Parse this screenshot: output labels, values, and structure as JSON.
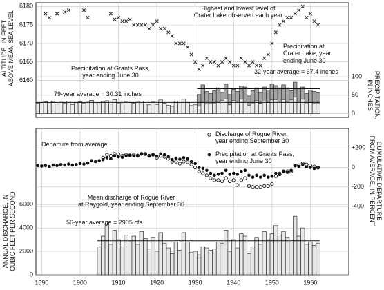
{
  "chart_data": [
    {
      "type": "combo",
      "xlim": [
        1888.5,
        1970
      ],
      "xticks": [
        1890,
        1900,
        1910,
        1920,
        1930,
        1940,
        1950,
        1960
      ],
      "ylim": [
        6150,
        6181
      ],
      "yticks": [
        6160,
        6165,
        6170,
        6175,
        6180
      ],
      "y_label": "ALTITUDE, IN FEET\nABOVE MEAN SEA LEVEL",
      "y2lim": [
        -10,
        300
      ],
      "y2ticks": [
        0,
        50,
        100
      ],
      "y2_label": "PRECIPITATION,\nIN INCHES",
      "grid": true,
      "series": [
        {
          "name": "Highest and lowest level of\nCrater Lake observed each year",
          "type": "scatter",
          "marker": "x",
          "color": "#222222",
          "x": [
            1891,
            1892,
            1894,
            1896,
            1897,
            1901,
            1902,
            1908,
            1909,
            1910,
            1911,
            1912,
            1913,
            1914,
            1915,
            1916,
            1917,
            1918,
            1919,
            1920,
            1921,
            1922,
            1923,
            1924,
            1925,
            1926,
            1927,
            1928,
            1929,
            1930,
            1931,
            1932,
            1933,
            1934,
            1935,
            1936,
            1937,
            1938,
            1939,
            1940,
            1941,
            1942,
            1943,
            1944,
            1945,
            1946,
            1947,
            1948,
            1949,
            1950,
            1951,
            1952,
            1953,
            1954,
            1955,
            1956,
            1957,
            1958,
            1959,
            1960,
            1961,
            1962
          ],
          "values": [
            6178,
            6177,
            6178,
            6178.5,
            6179,
            6179,
            6177,
            6178,
            6176.5,
            6177,
            6176,
            6176,
            6176.5,
            6175,
            6175,
            6175,
            6175,
            6174,
            6175,
            6176,
            6174,
            6174,
            6173,
            6172,
            6170,
            6170,
            6170,
            6169,
            6167,
            6165,
            6163,
            6164,
            6166,
            6165,
            6165,
            6164,
            6165,
            6166,
            6165,
            6164,
            6164,
            6166,
            6165,
            6164,
            6165,
            6164,
            6164,
            6166,
            6167,
            6170,
            6173,
            6175,
            6176,
            6177,
            6177,
            6178,
            6179,
            6180,
            6177,
            6178,
            6176,
            6175
          ]
        },
        {
          "name": "Precipitation at\nCrater Lake, year\nending June 30",
          "type": "step",
          "axis": "y2",
          "color": "#a4a4a4",
          "x": [
            1931,
            1932,
            1933,
            1934,
            1935,
            1936,
            1937,
            1938,
            1939,
            1940,
            1941,
            1942,
            1943,
            1944,
            1945,
            1946,
            1947,
            1948,
            1949,
            1950,
            1951,
            1952,
            1953,
            1954,
            1955,
            1956,
            1957,
            1958,
            1959,
            1960,
            1961,
            1962
          ],
          "values": [
            52,
            78,
            60,
            55,
            62,
            70,
            58,
            80,
            52,
            66,
            60,
            75,
            72,
            48,
            62,
            70,
            58,
            72,
            64,
            80,
            76,
            70,
            78,
            70,
            62,
            85,
            68,
            72,
            55,
            64,
            60,
            58
          ],
          "average": {
            "label": "32-year average = 67.4 inches",
            "value": 67.4
          }
        },
        {
          "name": "Precipitation at Grants Pass,\nyear ending June 30",
          "type": "step",
          "axis": "y2",
          "color": "#ececec",
          "x": [
            1889,
            1890,
            1891,
            1892,
            1893,
            1894,
            1895,
            1896,
            1897,
            1898,
            1899,
            1900,
            1901,
            1902,
            1903,
            1904,
            1905,
            1906,
            1907,
            1908,
            1909,
            1910,
            1911,
            1912,
            1913,
            1914,
            1915,
            1916,
            1917,
            1918,
            1919,
            1920,
            1921,
            1922,
            1923,
            1924,
            1925,
            1926,
            1927,
            1928,
            1929,
            1930,
            1931,
            1932,
            1933,
            1934,
            1935,
            1936,
            1937,
            1938,
            1939,
            1940,
            1941,
            1942,
            1943,
            1944,
            1945,
            1946,
            1947,
            1948,
            1949,
            1950,
            1951,
            1952,
            1953,
            1954,
            1955,
            1956,
            1957,
            1958,
            1959,
            1960,
            1961,
            1962
          ],
          "values": [
            28,
            30,
            32,
            27,
            33,
            26,
            31,
            29,
            34,
            25,
            30,
            32,
            28,
            31,
            36,
            27,
            30,
            33,
            35,
            26,
            38,
            29,
            27,
            33,
            30,
            28,
            31,
            34,
            26,
            24,
            33,
            25,
            37,
            28,
            23,
            20,
            34,
            27,
            39,
            30,
            22,
            24,
            21,
            30,
            26,
            27,
            29,
            33,
            35,
            40,
            24,
            36,
            30,
            39,
            33,
            22,
            29,
            35,
            28,
            34,
            30,
            37,
            38,
            33,
            38,
            31,
            37,
            45,
            33,
            39,
            26,
            30,
            29,
            27
          ],
          "average": {
            "label": "79-year average = 30.31 inches",
            "value": 30.31
          }
        }
      ]
    },
    {
      "type": "combo",
      "xlim": [
        1888.5,
        1970
      ],
      "xticks": [
        1890,
        1900,
        1910,
        1920,
        1930,
        1940,
        1950,
        1960
      ],
      "ylim": [
        0,
        12500
      ],
      "yticks": [
        0,
        2000,
        4000,
        6000
      ],
      "y_label": "ANNUAL DISCHARGE, IN\nCUBIC FEET PER SECOND",
      "y2lim": [
        -1100,
        400
      ],
      "y2ticks": [
        {
          "value": 200,
          "label": "+200"
        },
        0,
        -200,
        -400
      ],
      "y2_label": "CUMULATIVE DEPARTURE\nFROM AVERAGE, IN PERCENT",
      "grid": true,
      "annotations": [
        "Departure from average"
      ],
      "series": [
        {
          "name": "Discharge of Rogue River,\nyear ending September 30",
          "type": "scatter",
          "marker": "open-circle",
          "axis": "y2",
          "color": "#111111",
          "x": [
            1906,
            1907,
            1908,
            1909,
            1910,
            1911,
            1912,
            1913,
            1914,
            1915,
            1916,
            1917,
            1918,
            1919,
            1920,
            1921,
            1922,
            1923,
            1924,
            1925,
            1926,
            1927,
            1928,
            1929,
            1930,
            1931,
            1932,
            1933,
            1934,
            1935,
            1936,
            1937,
            1938,
            1939,
            1940,
            1941,
            1942,
            1943,
            1944,
            1945,
            1946,
            1947,
            1948,
            1949,
            1950,
            1951,
            1952,
            1953,
            1954,
            1955,
            1956,
            1957,
            1958,
            1959,
            1960,
            1961,
            1962
          ],
          "values": [
            100,
            130,
            120,
            140,
            135,
            120,
            130,
            125,
            130,
            120,
            140,
            140,
            120,
            130,
            100,
            120,
            110,
            90,
            60,
            60,
            40,
            60,
            55,
            30,
            0,
            -40,
            -60,
            -80,
            -110,
            -130,
            -130,
            -140,
            -110,
            -140,
            -130,
            -180,
            -130,
            -110,
            -190,
            -200,
            -200,
            -200,
            -190,
            -190,
            -170,
            -90,
            -70,
            -40,
            -40,
            -40,
            20,
            20,
            40,
            30,
            20,
            10,
            0
          ]
        },
        {
          "name": "Precipitation at Grants Pass,\nyear ending June 30",
          "type": "scatter",
          "marker": "dot",
          "axis": "y2",
          "color": "#111111",
          "x": [
            1889,
            1890,
            1891,
            1892,
            1893,
            1894,
            1895,
            1896,
            1897,
            1898,
            1899,
            1900,
            1901,
            1902,
            1903,
            1904,
            1905,
            1906,
            1907,
            1908,
            1909,
            1910,
            1911,
            1912,
            1913,
            1914,
            1915,
            1916,
            1917,
            1918,
            1919,
            1920,
            1921,
            1922,
            1923,
            1924,
            1925,
            1926,
            1927,
            1928,
            1929,
            1930,
            1931,
            1932,
            1933,
            1934,
            1935,
            1936,
            1937,
            1938,
            1939,
            1940,
            1941,
            1942,
            1943,
            1944,
            1945,
            1946,
            1947,
            1948,
            1949,
            1950,
            1951,
            1952,
            1953,
            1954,
            1955,
            1956,
            1957,
            1958,
            1959,
            1960,
            1961,
            1962
          ],
          "values": [
            20,
            15,
            20,
            10,
            25,
            20,
            30,
            25,
            35,
            25,
            30,
            40,
            35,
            45,
            70,
            60,
            70,
            80,
            100,
            90,
            120,
            110,
            105,
            120,
            125,
            120,
            125,
            140,
            135,
            120,
            130,
            115,
            140,
            130,
            110,
            80,
            95,
            85,
            100,
            90,
            60,
            40,
            0,
            -10,
            -30,
            -60,
            -80,
            -70,
            -60,
            -30,
            -70,
            -60,
            -70,
            -40,
            -30,
            -80,
            -100,
            -80,
            -100,
            -80,
            -100,
            -90,
            -60,
            -60,
            -40,
            -50,
            -30,
            20,
            10,
            30,
            5,
            0,
            -10,
            -5
          ]
        },
        {
          "name": "Mean discharge of Rogue River\nat Raygold, year ending September 30",
          "type": "step",
          "color": "#e8e8e8",
          "x": [
            1905,
            1906,
            1907,
            1908,
            1909,
            1910,
            1911,
            1912,
            1913,
            1914,
            1915,
            1916,
            1917,
            1918,
            1919,
            1920,
            1921,
            1922,
            1923,
            1924,
            1925,
            1926,
            1927,
            1928,
            1929,
            1930,
            1931,
            1932,
            1933,
            1934,
            1935,
            1936,
            1937,
            1938,
            1939,
            1940,
            1941,
            1942,
            1943,
            1944,
            1945,
            1946,
            1947,
            1948,
            1949,
            1950,
            1951,
            1952,
            1953,
            1954,
            1955,
            1956,
            1957,
            1958,
            1959,
            1960,
            1961,
            1962
          ],
          "values": [
            2400,
            3300,
            4300,
            2600,
            3800,
            3000,
            2400,
            3400,
            2900,
            3300,
            2600,
            3700,
            3100,
            2200,
            3200,
            2000,
            3600,
            2700,
            2300,
            1800,
            2800,
            2100,
            3600,
            2800,
            1900,
            2000,
            1700,
            2400,
            2300,
            2100,
            2200,
            2800,
            2700,
            3800,
            2000,
            3000,
            2300,
            3500,
            3300,
            1800,
            2400,
            3200,
            2600,
            3700,
            3000,
            3500,
            4200,
            3400,
            3700,
            3200,
            2800,
            5000,
            3300,
            4000,
            2600,
            2800,
            2500,
            2700
          ],
          "average": {
            "label": "56-year average = 2905 cfs",
            "value": 2905
          }
        }
      ]
    }
  ]
}
